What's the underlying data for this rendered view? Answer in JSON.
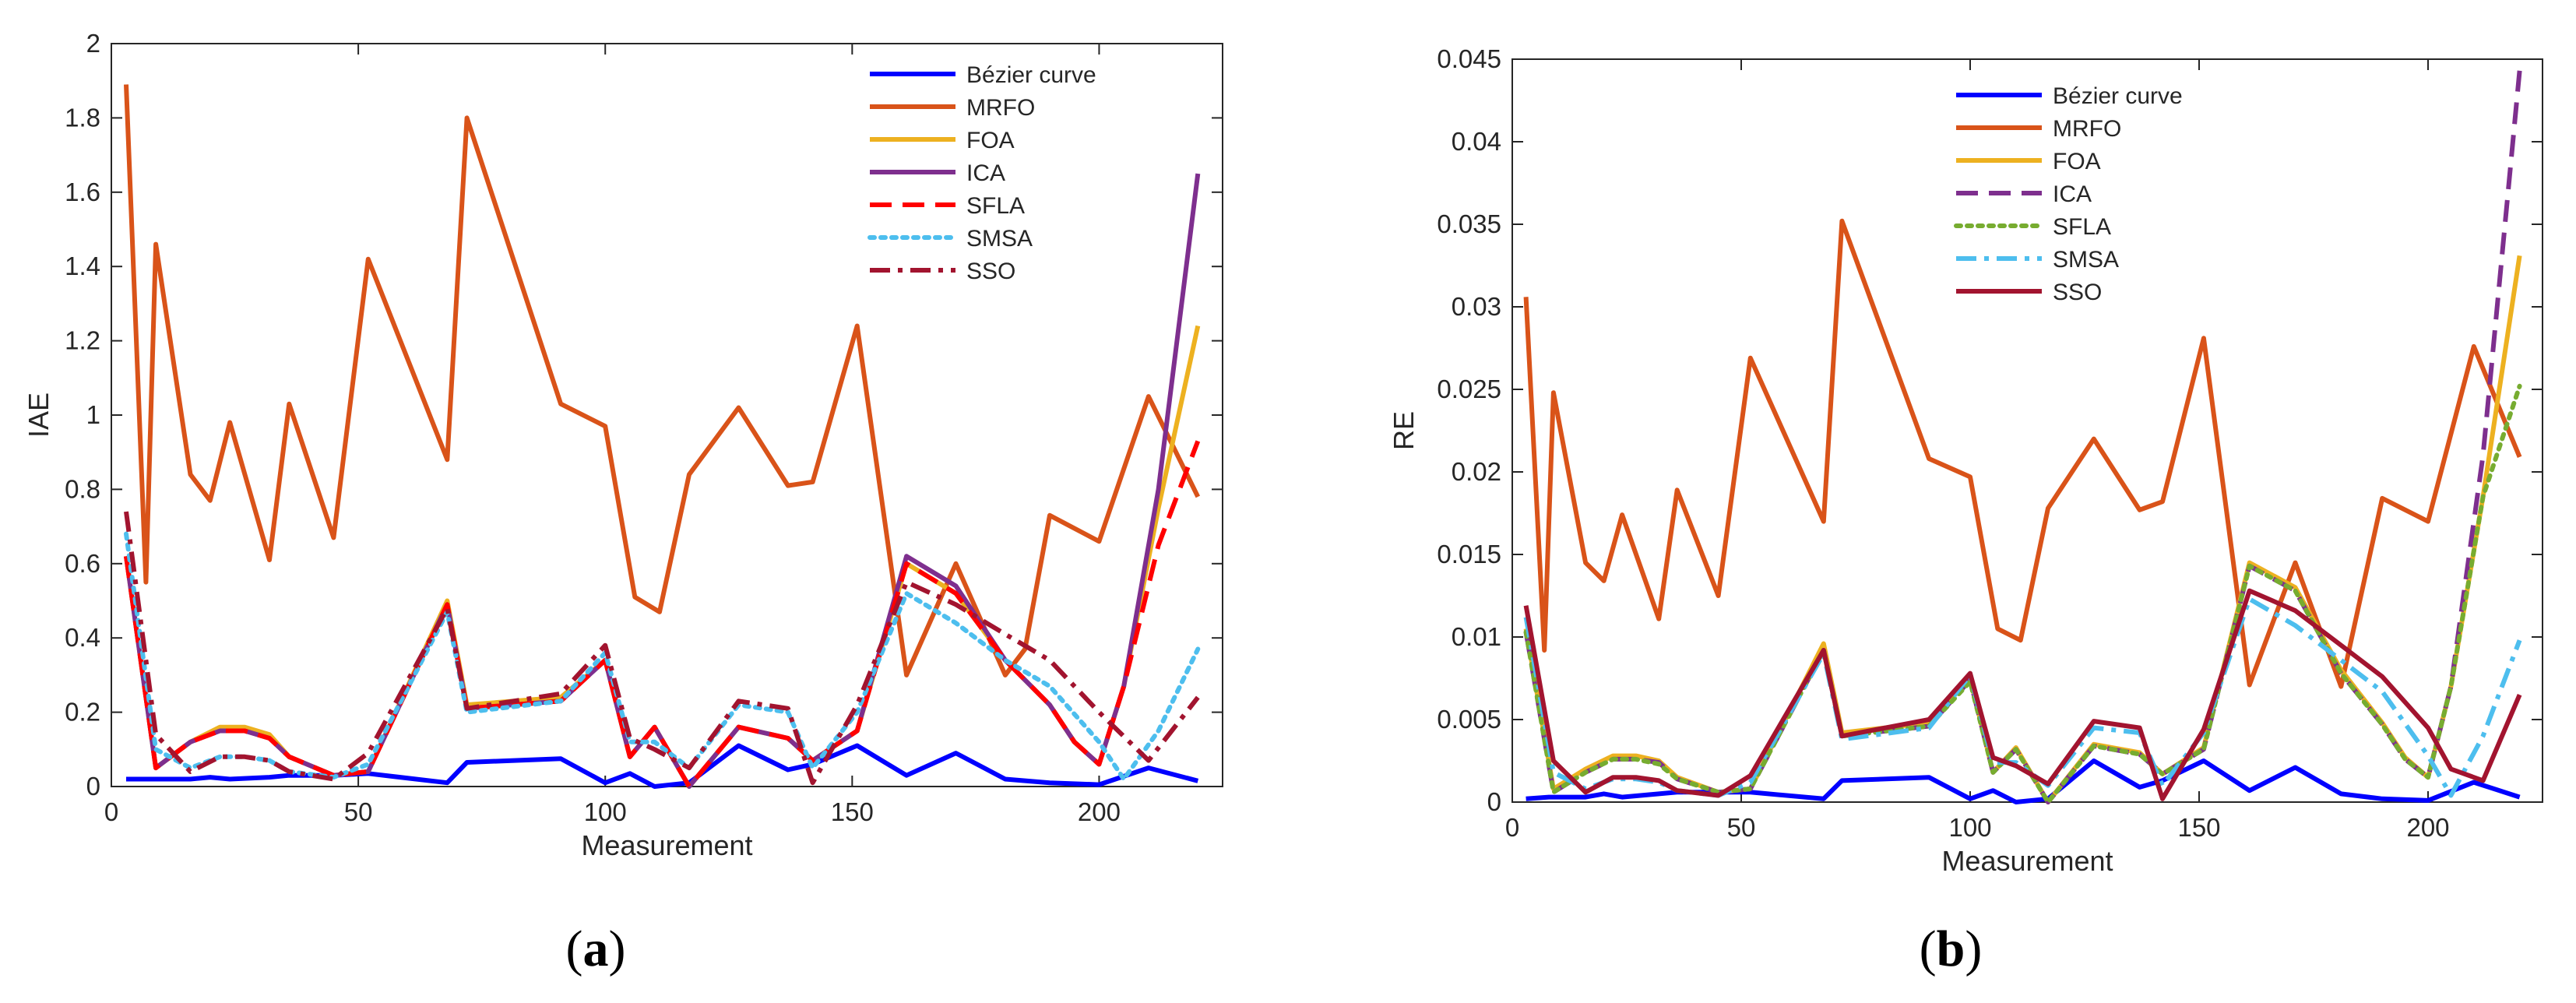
{
  "chart_data": [
    {
      "type": "line",
      "panel_label_open": "(",
      "panel_label_letter": "a",
      "panel_label_close": ")",
      "xlabel": "Measurement",
      "ylabel": "IAE",
      "xlim": [
        0,
        225
      ],
      "ylim": [
        0,
        2
      ],
      "xticks": [
        0,
        50,
        100,
        150,
        200
      ],
      "xtick_labels": [
        "0",
        "50",
        "100",
        "150",
        "200"
      ],
      "yticks": [
        0,
        0.2,
        0.4,
        0.6,
        0.8,
        1,
        1.2,
        1.4,
        1.6,
        1.8,
        2
      ],
      "ytick_labels": [
        "0",
        "0.2",
        "0.4",
        "0.6",
        "0.8",
        "1",
        "1.2",
        "1.4",
        "1.6",
        "1.8",
        "2"
      ],
      "grid": false,
      "legend_position": "top-right",
      "series": [
        {
          "name": "Bézier curve",
          "color": "#0000FF",
          "dash": "solid",
          "x": [
            3,
            8,
            16,
            20,
            24,
            32,
            36,
            45,
            52,
            68,
            72,
            91,
            100,
            105,
            110,
            117,
            127,
            137,
            142,
            151,
            161,
            171,
            181,
            190,
            200,
            210,
            220
          ],
          "y": [
            0.02,
            0.02,
            0.02,
            0.025,
            0.02,
            0.025,
            0.03,
            0.03,
            0.035,
            0.01,
            0.065,
            0.075,
            0.01,
            0.035,
            0.0,
            0.01,
            0.11,
            0.045,
            0.06,
            0.11,
            0.03,
            0.09,
            0.02,
            0.01,
            0.005,
            0.05,
            0.015
          ]
        },
        {
          "name": "MRFO",
          "color": "#D95319",
          "dash": "solid",
          "x": [
            3,
            7,
            9,
            16,
            20,
            24,
            32,
            36,
            45,
            52,
            68,
            72,
            91,
            100,
            106,
            111,
            117,
            127,
            137,
            142,
            151,
            161,
            171,
            181,
            185,
            190,
            200,
            210,
            220
          ],
          "y": [
            1.89,
            0.55,
            1.46,
            0.84,
            0.77,
            0.98,
            0.61,
            1.03,
            0.67,
            1.42,
            0.88,
            1.8,
            1.03,
            0.97,
            0.51,
            0.47,
            0.84,
            1.02,
            0.81,
            0.82,
            1.24,
            0.3,
            0.6,
            0.3,
            0.37,
            0.73,
            0.66,
            1.05,
            0.78
          ]
        },
        {
          "name": "FOA",
          "color": "#EDB120",
          "dash": "solid",
          "x": [
            3,
            9,
            16,
            22,
            27,
            32,
            36,
            45,
            52,
            68,
            72,
            91,
            100,
            105,
            110,
            117,
            127,
            137,
            142,
            151,
            161,
            171,
            181,
            190,
            195,
            200,
            205,
            212,
            220
          ],
          "y": [
            0.62,
            0.05,
            0.12,
            0.16,
            0.16,
            0.14,
            0.08,
            0.03,
            0.04,
            0.5,
            0.22,
            0.24,
            0.34,
            0.08,
            0.16,
            0.0,
            0.16,
            0.13,
            0.07,
            0.15,
            0.6,
            0.52,
            0.34,
            0.22,
            0.12,
            0.06,
            0.27,
            0.75,
            1.24
          ]
        },
        {
          "name": "ICA",
          "color": "#7E2F8E",
          "dash": "solid",
          "x": [
            3,
            9,
            16,
            22,
            27,
            32,
            36,
            45,
            52,
            68,
            72,
            91,
            100,
            105,
            110,
            117,
            127,
            137,
            142,
            151,
            161,
            171,
            181,
            190,
            195,
            200,
            205,
            212,
            220
          ],
          "y": [
            0.62,
            0.05,
            0.12,
            0.15,
            0.15,
            0.13,
            0.08,
            0.03,
            0.04,
            0.49,
            0.21,
            0.23,
            0.34,
            0.08,
            0.16,
            0.0,
            0.16,
            0.13,
            0.07,
            0.15,
            0.62,
            0.54,
            0.34,
            0.22,
            0.12,
            0.06,
            0.27,
            0.8,
            1.65
          ]
        },
        {
          "name": "SFLA",
          "color": "#FF0000",
          "dash": "dash",
          "x": [
            3,
            9,
            16,
            22,
            27,
            32,
            36,
            45,
            52,
            68,
            72,
            91,
            100,
            105,
            110,
            117,
            127,
            137,
            142,
            151,
            161,
            171,
            181,
            190,
            195,
            200,
            205,
            212,
            220
          ],
          "y": [
            0.62,
            0.05,
            0.12,
            0.15,
            0.15,
            0.13,
            0.08,
            0.03,
            0.04,
            0.49,
            0.21,
            0.23,
            0.34,
            0.08,
            0.16,
            0.0,
            0.16,
            0.13,
            0.07,
            0.15,
            0.6,
            0.52,
            0.34,
            0.22,
            0.12,
            0.06,
            0.27,
            0.65,
            0.93
          ]
        },
        {
          "name": "SMSA",
          "color": "#4DBEEE",
          "dash": "dot",
          "x": [
            3,
            9,
            16,
            22,
            27,
            32,
            36,
            45,
            52,
            68,
            72,
            91,
            100,
            105,
            110,
            117,
            127,
            137,
            142,
            151,
            161,
            171,
            181,
            190,
            200,
            205,
            212,
            220
          ],
          "y": [
            0.68,
            0.1,
            0.05,
            0.08,
            0.08,
            0.07,
            0.04,
            0.025,
            0.06,
            0.47,
            0.2,
            0.23,
            0.36,
            0.12,
            0.12,
            0.05,
            0.22,
            0.2,
            0.05,
            0.2,
            0.52,
            0.44,
            0.34,
            0.27,
            0.12,
            0.02,
            0.15,
            0.37
          ]
        },
        {
          "name": "SSO",
          "color": "#A2142F",
          "dash": "dashdot",
          "x": [
            3,
            9,
            16,
            22,
            27,
            32,
            36,
            45,
            52,
            68,
            72,
            91,
            100,
            105,
            110,
            117,
            127,
            137,
            142,
            151,
            161,
            171,
            181,
            190,
            200,
            210,
            220
          ],
          "y": [
            0.74,
            0.14,
            0.04,
            0.08,
            0.08,
            0.07,
            0.04,
            0.02,
            0.09,
            0.48,
            0.21,
            0.25,
            0.38,
            0.13,
            0.1,
            0.05,
            0.23,
            0.21,
            0.01,
            0.22,
            0.55,
            0.49,
            0.41,
            0.34,
            0.2,
            0.07,
            0.24
          ]
        }
      ]
    },
    {
      "type": "line",
      "panel_label_open": "(",
      "panel_label_letter": "b",
      "panel_label_close": ")",
      "xlabel": "Measurement",
      "ylabel": "RE",
      "xlim": [
        0,
        225
      ],
      "ylim": [
        0,
        0.045
      ],
      "xticks": [
        0,
        50,
        100,
        150,
        200
      ],
      "xtick_labels": [
        "0",
        "50",
        "100",
        "150",
        "200"
      ],
      "yticks": [
        0,
        0.005,
        0.01,
        0.015,
        0.02,
        0.025,
        0.03,
        0.035,
        0.04,
        0.045
      ],
      "ytick_labels": [
        "0",
        "0.005",
        "0.01",
        "0.015",
        "0.02",
        "0.025",
        "0.03",
        "0.035",
        "0.04",
        "0.045"
      ],
      "grid": false,
      "legend_position": "top-center",
      "series": [
        {
          "name": "Bézier curve",
          "color": "#0000FF",
          "dash": "solid",
          "x": [
            3,
            8,
            16,
            20,
            24,
            32,
            36,
            45,
            52,
            68,
            72,
            91,
            100,
            105,
            110,
            117,
            127,
            137,
            142,
            151,
            161,
            171,
            181,
            190,
            200,
            210,
            220
          ],
          "y": [
            0.0002,
            0.0003,
            0.0003,
            0.0005,
            0.0003,
            0.0005,
            0.0006,
            0.0006,
            0.0006,
            0.0002,
            0.0013,
            0.0015,
            0.0002,
            0.0007,
            0.0,
            0.0002,
            0.0025,
            0.0009,
            0.0013,
            0.0025,
            0.0007,
            0.0021,
            0.0005,
            0.0002,
            0.0001,
            0.0012,
            0.0003
          ]
        },
        {
          "name": "MRFO",
          "color": "#D95319",
          "dash": "solid",
          "x": [
            3,
            7,
            9,
            16,
            20,
            24,
            32,
            36,
            45,
            52,
            68,
            72,
            91,
            100,
            106,
            111,
            117,
            127,
            137,
            142,
            151,
            161,
            171,
            181,
            190,
            200,
            210,
            220
          ],
          "y": [
            0.0306,
            0.0092,
            0.0248,
            0.0145,
            0.0134,
            0.0174,
            0.0111,
            0.0189,
            0.0125,
            0.0269,
            0.017,
            0.0352,
            0.0208,
            0.0197,
            0.0105,
            0.0098,
            0.0178,
            0.022,
            0.0177,
            0.0182,
            0.0281,
            0.0071,
            0.0145,
            0.007,
            0.0184,
            0.017,
            0.0276,
            0.0209
          ]
        },
        {
          "name": "FOA",
          "color": "#EDB120",
          "dash": "solid",
          "x": [
            3,
            9,
            16,
            22,
            27,
            32,
            36,
            45,
            52,
            68,
            72,
            91,
            100,
            105,
            110,
            117,
            127,
            137,
            142,
            151,
            161,
            171,
            181,
            190,
            195,
            200,
            205,
            212,
            220
          ],
          "y": [
            0.0105,
            0.0008,
            0.002,
            0.0028,
            0.0028,
            0.0025,
            0.0015,
            0.0006,
            0.0008,
            0.0096,
            0.0042,
            0.0048,
            0.0075,
            0.0018,
            0.0033,
            0.0,
            0.0035,
            0.003,
            0.0017,
            0.0033,
            0.0145,
            0.013,
            0.008,
            0.0048,
            0.0027,
            0.0015,
            0.007,
            0.0185,
            0.0331
          ]
        },
        {
          "name": "ICA",
          "color": "#7E2F8E",
          "dash": "dash",
          "x": [
            3,
            9,
            16,
            22,
            27,
            32,
            36,
            45,
            52,
            68,
            72,
            91,
            100,
            105,
            110,
            117,
            127,
            137,
            142,
            151,
            161,
            171,
            181,
            190,
            195,
            200,
            205,
            212,
            220
          ],
          "y": [
            0.0103,
            0.0006,
            0.0018,
            0.0026,
            0.0026,
            0.0024,
            0.0014,
            0.0006,
            0.0008,
            0.0092,
            0.004,
            0.0046,
            0.0074,
            0.0018,
            0.0032,
            0.0,
            0.0034,
            0.0029,
            0.0017,
            0.0032,
            0.0143,
            0.0128,
            0.0078,
            0.0047,
            0.0026,
            0.0015,
            0.007,
            0.021,
            0.0443
          ]
        },
        {
          "name": "SFLA",
          "color": "#77AC30",
          "dash": "dot",
          "x": [
            3,
            9,
            16,
            22,
            27,
            32,
            36,
            45,
            52,
            68,
            72,
            91,
            100,
            105,
            110,
            117,
            127,
            137,
            142,
            151,
            161,
            171,
            181,
            190,
            195,
            200,
            205,
            212,
            220
          ],
          "y": [
            0.0103,
            0.0006,
            0.0018,
            0.0026,
            0.0026,
            0.0023,
            0.0014,
            0.0006,
            0.0008,
            0.0092,
            0.004,
            0.0046,
            0.0073,
            0.0018,
            0.0032,
            0.0,
            0.0034,
            0.0029,
            0.0017,
            0.0032,
            0.0143,
            0.0128,
            0.0078,
            0.0047,
            0.0026,
            0.0015,
            0.007,
            0.0185,
            0.0252
          ]
        },
        {
          "name": "SMSA",
          "color": "#4DBEEE",
          "dash": "dashdot",
          "x": [
            3,
            9,
            16,
            22,
            27,
            32,
            36,
            45,
            52,
            68,
            72,
            91,
            100,
            105,
            110,
            117,
            127,
            137,
            142,
            151,
            161,
            171,
            181,
            190,
            200,
            205,
            212,
            220
          ],
          "y": [
            0.0112,
            0.0018,
            0.0008,
            0.0014,
            0.0014,
            0.0012,
            0.0007,
            0.0004,
            0.0012,
            0.009,
            0.0038,
            0.0045,
            0.0077,
            0.0024,
            0.0024,
            0.001,
            0.0045,
            0.0042,
            0.001,
            0.0042,
            0.0123,
            0.0107,
            0.0086,
            0.0067,
            0.0028,
            0.0004,
            0.004,
            0.0098
          ]
        },
        {
          "name": "SSO",
          "color": "#A2142F",
          "dash": "solid",
          "x": [
            3,
            9,
            16,
            22,
            27,
            32,
            36,
            45,
            52,
            68,
            72,
            91,
            100,
            105,
            110,
            117,
            127,
            137,
            142,
            151,
            161,
            171,
            181,
            190,
            200,
            205,
            212,
            220
          ],
          "y": [
            0.0119,
            0.0025,
            0.0006,
            0.0015,
            0.0015,
            0.0013,
            0.0007,
            0.0004,
            0.0016,
            0.0092,
            0.004,
            0.005,
            0.0078,
            0.0027,
            0.0022,
            0.0011,
            0.0049,
            0.0045,
            0.0002,
            0.0044,
            0.0128,
            0.0116,
            0.0095,
            0.0076,
            0.0045,
            0.002,
            0.0013,
            0.0065
          ]
        }
      ]
    }
  ]
}
